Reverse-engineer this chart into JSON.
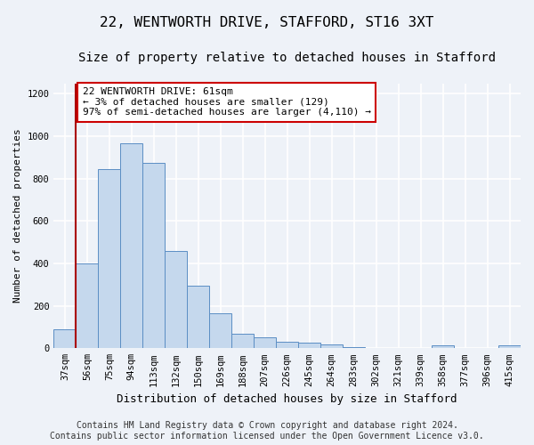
{
  "title1": "22, WENTWORTH DRIVE, STAFFORD, ST16 3XT",
  "title2": "Size of property relative to detached houses in Stafford",
  "xlabel": "Distribution of detached houses by size in Stafford",
  "ylabel": "Number of detached properties",
  "categories": [
    "37sqm",
    "56sqm",
    "75sqm",
    "94sqm",
    "113sqm",
    "132sqm",
    "150sqm",
    "169sqm",
    "188sqm",
    "207sqm",
    "226sqm",
    "245sqm",
    "264sqm",
    "283sqm",
    "302sqm",
    "321sqm",
    "339sqm",
    "358sqm",
    "377sqm",
    "396sqm",
    "415sqm"
  ],
  "values": [
    90,
    400,
    845,
    965,
    875,
    460,
    293,
    163,
    68,
    50,
    30,
    25,
    18,
    5,
    0,
    0,
    0,
    12,
    0,
    0,
    12
  ],
  "bar_color": "#c5d8ed",
  "bar_edge_color": "#5b8ec4",
  "annotation_text": "22 WENTWORTH DRIVE: 61sqm\n← 3% of detached houses are smaller (129)\n97% of semi-detached houses are larger (4,110) →",
  "annotation_box_color": "#ffffff",
  "annotation_box_edge_color": "#cc0000",
  "vline_color": "#aa0000",
  "vline_x_index": 1,
  "ylim": [
    0,
    1250
  ],
  "yticks": [
    0,
    200,
    400,
    600,
    800,
    1000,
    1200
  ],
  "footer1": "Contains HM Land Registry data © Crown copyright and database right 2024.",
  "footer2": "Contains public sector information licensed under the Open Government Licence v3.0.",
  "bg_color": "#eef2f8",
  "plot_bg_color": "#eef2f8",
  "grid_color": "#ffffff",
  "title1_fontsize": 11.5,
  "title2_fontsize": 10,
  "xlabel_fontsize": 9,
  "ylabel_fontsize": 8,
  "tick_fontsize": 7.5,
  "annotation_fontsize": 8,
  "footer_fontsize": 7
}
